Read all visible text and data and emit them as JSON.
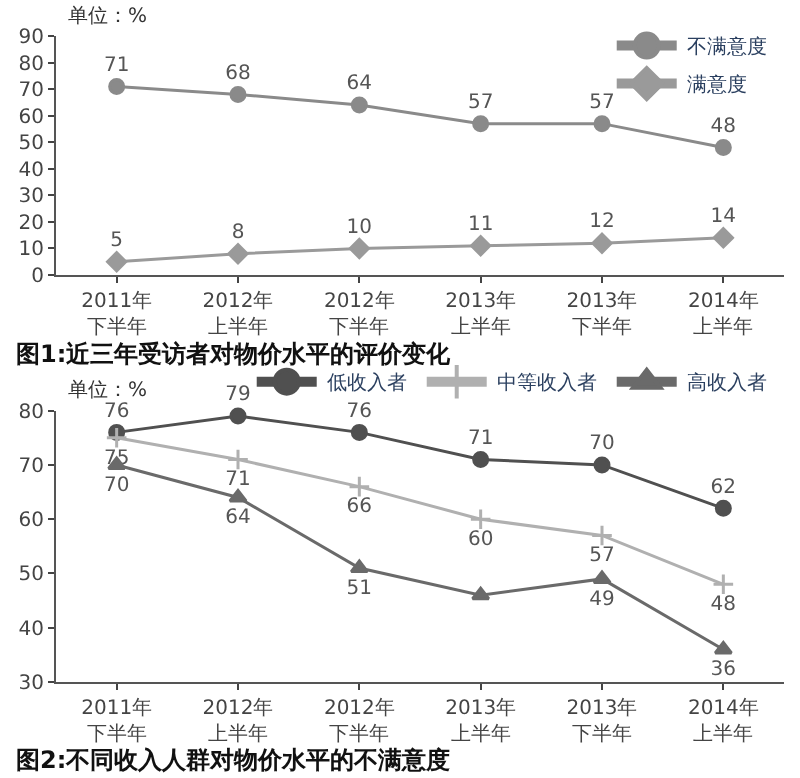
{
  "chart_data": [
    {
      "type": "line",
      "title": "图1:近三年受访者对物价水平的评价变化",
      "annotations": [
        "单位：%"
      ],
      "categories": [
        "2011年下半年",
        "2012年上半年",
        "2012年下半年",
        "2013年上半年",
        "2013年下半年",
        "2014年上半年"
      ],
      "series": [
        {
          "name": "不满意度",
          "color": "#8a8a8a",
          "marker": "circle",
          "values": [
            71,
            68,
            64,
            57,
            57,
            48
          ]
        },
        {
          "name": "满意度",
          "color": "#9a9a9a",
          "marker": "diamond",
          "values": [
            5,
            8,
            10,
            11,
            12,
            14
          ]
        }
      ],
      "ylim": [
        0,
        90
      ],
      "yticks": [
        0,
        10,
        20,
        30,
        40,
        50,
        60,
        70,
        80,
        90
      ],
      "data_labels": true,
      "legend": "top right",
      "line_style": "solid"
    },
    {
      "type": "line",
      "title": "图2:不同收入人群对物价水平的不满意度",
      "annotations": [
        "单位：%"
      ],
      "categories": [
        "2011年下半年",
        "2012年上半年",
        "2012年下半年",
        "2013年上半年",
        "2013年下半年",
        "2014年上半年"
      ],
      "series": [
        {
          "name": "低收入者",
          "color": "#505050",
          "marker": "circle",
          "values": [
            76,
            79,
            76,
            71,
            70,
            62
          ],
          "value_labels": [
            "76",
            "79",
            "76",
            "71",
            "70",
            "62"
          ]
        },
        {
          "name": "中等收入者",
          "color": "#b0b0b0",
          "marker": "cross",
          "values": [
            75,
            71,
            66,
            60,
            57,
            48
          ],
          "value_labels": [
            "75",
            "71",
            "66",
            "60",
            "57",
            "48"
          ]
        },
        {
          "name": "高收入者",
          "color": "#6a6a6a",
          "marker": "triangle",
          "values": [
            70,
            64,
            51,
            46,
            49,
            36
          ],
          "value_labels": [
            "70",
            "64",
            "51",
            null,
            "49",
            "36"
          ]
        }
      ],
      "ylim": [
        30,
        80
      ],
      "yticks": [
        30,
        40,
        50,
        60,
        70,
        80
      ],
      "legend": "top right",
      "line_style": "solid"
    }
  ]
}
